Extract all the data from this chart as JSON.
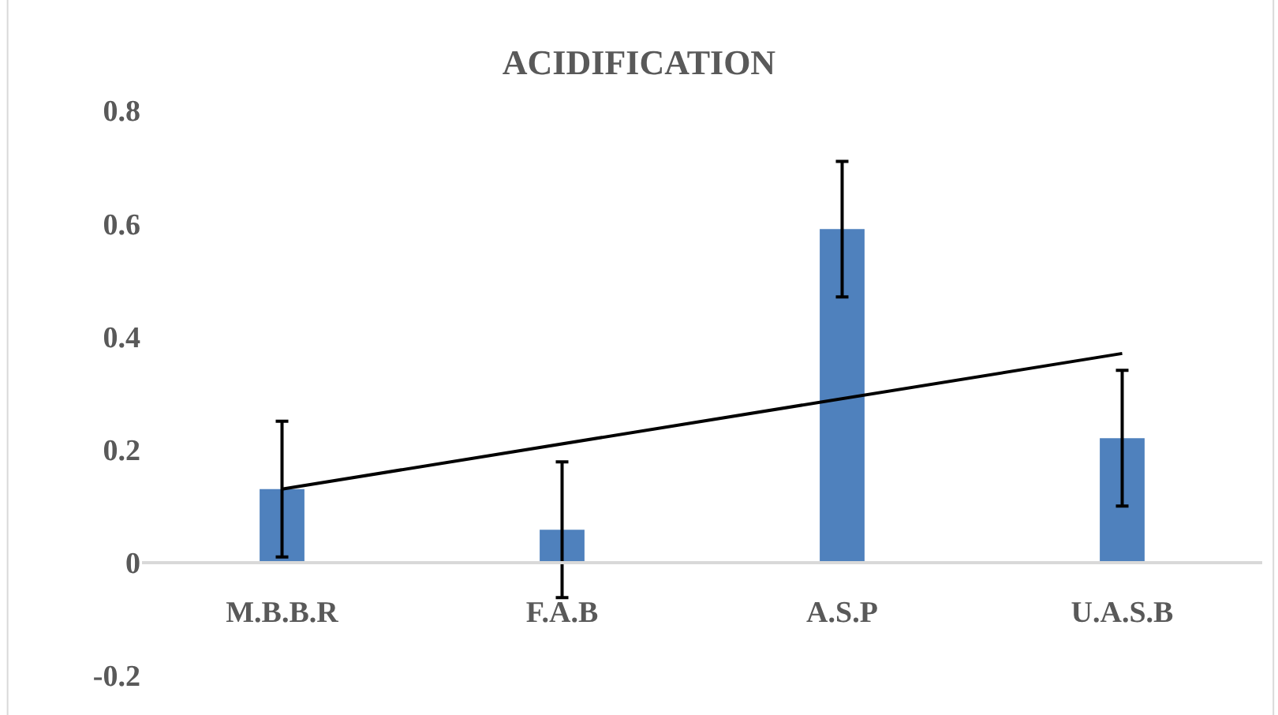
{
  "chart_data": {
    "type": "bar",
    "title": "ACIDIFICATION",
    "categories": [
      "M.B.B.R",
      "F.A.B",
      "A.S.P",
      "U.A.S.B"
    ],
    "series": [
      {
        "color": "#4f81bd",
        "values": [
          0.13,
          0.058,
          0.59,
          0.22
        ],
        "errors": [
          0.12,
          0.12,
          0.12,
          0.12
        ]
      },
      {
        "type": "line",
        "color": "#000000",
        "x": [
          "M.B.B.R",
          "U.A.S.B"
        ],
        "values": [
          0.13,
          0.37
        ],
        "line_style": "solid"
      }
    ],
    "ylim": [
      -0.2,
      0.8
    ],
    "yticks": [
      -0.2,
      0,
      0.2,
      0.4,
      0.6,
      0.8
    ],
    "legend": false
  }
}
